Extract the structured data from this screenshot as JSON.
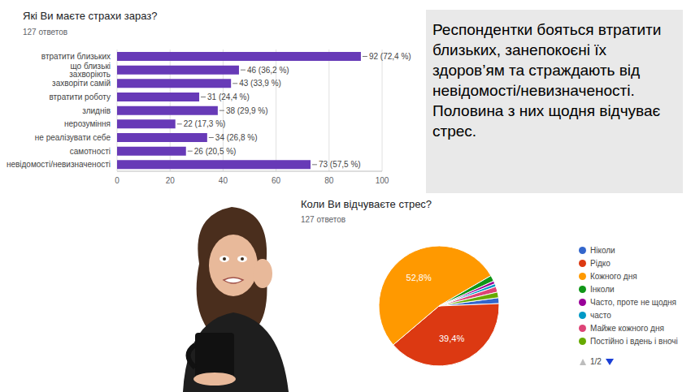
{
  "text_box": "Респондентки бояться втратити близьких, занепокоєні їх здоров’ям та страждають від невідомості/невизначеності. Половина з них щодня відчуває стрес.",
  "chart_data": [
    {
      "type": "bar",
      "orientation": "horizontal",
      "title": "Які Ви маєте страхи зараз?",
      "subtitle": "127 ответов",
      "categories": [
        "втратити близьких",
        "що близькі захворіють",
        "захворіти самій",
        "втратити роботу",
        "злиднів",
        "нерозуміння",
        "не реалізувати себе",
        "самотності",
        "невідомості/невизначеності"
      ],
      "values": [
        92,
        46,
        43,
        31,
        38,
        22,
        34,
        26,
        73
      ],
      "value_labels": [
        "92 (72,4 %)",
        "46 (36,2 %)",
        "43 (33,9 %)",
        "31 (24,4 %)",
        "38 (29,9 %)",
        "22 (17,3 %)",
        "34 (26,8 %)",
        "26 (20,5 %)",
        "73 (57,5 %)"
      ],
      "data_labels": true,
      "color": "#673ab7",
      "xlim": [
        0,
        100
      ],
      "xticks": [
        0,
        20,
        40,
        60,
        80,
        100
      ],
      "grid": true
    },
    {
      "type": "pie",
      "title": "Коли Ви відчуваєте стрес?",
      "subtitle": "127 ответов",
      "categories": [
        "Ніколи",
        "Рідко",
        "Кожного дня",
        "Інколи",
        "Часто, проте не щодня",
        "часто",
        "Майже кожного дня",
        "Постійно і вдень і вночі"
      ],
      "values": [
        1.6,
        39.4,
        52.8,
        1.6,
        0.8,
        0.8,
        1.5,
        1.5
      ],
      "value_labels": [
        null,
        "39,4%",
        "52,8%",
        null,
        null,
        null,
        null,
        null
      ],
      "data_labels": true,
      "colors": [
        "#3366cc",
        "#dc3912",
        "#ff9900",
        "#109618",
        "#990099",
        "#0099c6",
        "#dd4477",
        "#66aa00"
      ],
      "legend": "right",
      "legend_page": "1/2"
    }
  ]
}
